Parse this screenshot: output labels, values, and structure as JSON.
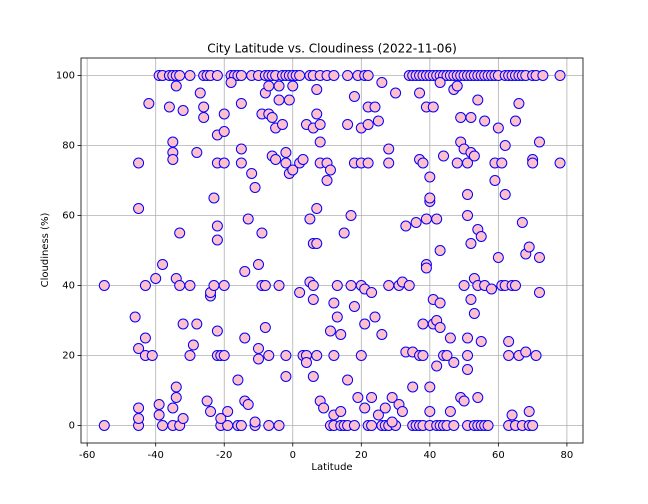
{
  "chart_data": {
    "type": "scatter",
    "title": "City Latitude vs. Cloudiness (2022-11-06)",
    "xlabel": "Latitude",
    "ylabel": "Cloudiness (%)",
    "xlim": [
      -61.8,
      84.7
    ],
    "ylim": [
      -5,
      105
    ],
    "xticks": [
      -60,
      -40,
      -20,
      0,
      20,
      40,
      60,
      80
    ],
    "yticks": [
      0,
      20,
      40,
      60,
      80,
      100
    ],
    "grid": true,
    "color": "#ffc0cb",
    "edgecolor": "#0000ff",
    "x": [
      -39,
      -38,
      -36,
      -35,
      -34,
      -33,
      -30,
      -26,
      -25,
      -24,
      -22,
      -18,
      -17,
      -16,
      -15,
      -12,
      -10,
      -8,
      -7,
      -6,
      -5,
      -3,
      -2,
      -1,
      0,
      1,
      2,
      5,
      6,
      8,
      10,
      12,
      16,
      19,
      21,
      22,
      34,
      35,
      36,
      37,
      38,
      39,
      40,
      41,
      42,
      43,
      44,
      45,
      46,
      47,
      48,
      49,
      50,
      51,
      52,
      53,
      54,
      55,
      56,
      57,
      58,
      59,
      60,
      62,
      63,
      64,
      65,
      66,
      67,
      68,
      70,
      71,
      73,
      78,
      -55,
      -45,
      -38,
      -35,
      -33,
      -21,
      -19,
      -16,
      -15,
      -11,
      -7,
      -4,
      11,
      12,
      14,
      15,
      16,
      18,
      22,
      23,
      26,
      27,
      28,
      30,
      35,
      36,
      37,
      38,
      40,
      42,
      43,
      44,
      45,
      47,
      51,
      53,
      54,
      55,
      56,
      57,
      63,
      65,
      67,
      69,
      70,
      -55,
      -46,
      -45,
      -45,
      -45,
      -45,
      -45,
      -42,
      -43,
      -43,
      -43,
      -41,
      -40,
      -39,
      -39,
      -38,
      -36,
      -35,
      -35,
      -35,
      -35,
      -34,
      -34,
      -34,
      -34,
      -33,
      -33,
      -32,
      -32,
      -32,
      -30,
      -30,
      -29,
      -28,
      -28,
      -27,
      -26,
      -26,
      -25,
      -24,
      -24,
      -24,
      -23,
      -23,
      -22,
      -22,
      -22,
      -22,
      -22,
      -22,
      -21,
      -21,
      -20,
      -20,
      -20,
      -20,
      -20,
      -19,
      -18,
      -16,
      -15,
      -15,
      -15,
      -14,
      -14,
      -14,
      -13,
      -13,
      -12,
      -11,
      -11,
      -10,
      -10,
      -10,
      -9,
      -9,
      -9,
      -8,
      -8,
      -8,
      -7,
      -7,
      -7,
      -6,
      -6,
      -5,
      -5,
      -4,
      -4,
      -4,
      -3,
      -2,
      -2,
      -2,
      -2,
      -1,
      -1,
      0,
      0,
      2,
      2,
      3,
      3,
      4,
      4,
      4,
      5,
      5,
      6,
      6,
      6,
      6,
      6,
      7,
      7,
      7,
      7,
      7,
      8,
      8,
      8,
      8,
      9,
      10,
      10,
      11,
      11,
      12,
      12,
      12,
      13,
      13,
      14,
      14,
      15,
      16,
      16,
      17,
      17,
      18,
      18,
      18,
      19,
      20,
      20,
      20,
      20,
      21,
      21,
      21,
      22,
      22,
      22,
      23,
      23,
      24,
      24,
      25,
      25,
      26,
      26,
      27,
      28,
      28,
      28,
      29,
      29,
      30,
      31,
      31,
      32,
      32,
      33,
      33,
      34,
      35,
      35,
      36,
      37,
      37,
      37,
      38,
      38,
      38,
      39,
      39,
      39,
      39,
      40,
      40,
      40,
      40,
      40,
      41,
      41,
      41,
      42,
      42,
      42,
      43,
      43,
      43,
      43,
      44,
      44,
      45,
      46,
      46,
      47,
      47,
      48,
      48,
      49,
      49,
      49,
      50,
      50,
      50,
      51,
      51,
      51,
      51,
      51,
      51,
      52,
      52,
      52,
      52,
      53,
      53,
      53,
      54,
      54,
      54,
      54,
      55,
      55,
      56,
      56,
      58,
      59,
      59,
      60,
      60,
      61,
      61,
      62,
      62,
      62,
      63,
      63,
      64,
      64,
      65,
      65,
      66,
      66,
      67,
      68,
      68,
      69,
      69,
      70,
      70,
      71,
      72,
      72,
      72,
      78
    ],
    "values": [
      100,
      100,
      100,
      100,
      100,
      100,
      100,
      100,
      100,
      100,
      100,
      100,
      100,
      100,
      100,
      100,
      100,
      100,
      100,
      100,
      100,
      100,
      100,
      100,
      100,
      100,
      100,
      100,
      100,
      100,
      100,
      100,
      100,
      100,
      100,
      100,
      100,
      100,
      100,
      100,
      100,
      100,
      100,
      100,
      100,
      100,
      100,
      100,
      100,
      100,
      100,
      100,
      100,
      100,
      100,
      100,
      100,
      100,
      100,
      100,
      100,
      100,
      100,
      100,
      100,
      100,
      100,
      100,
      100,
      100,
      100,
      100,
      100,
      100,
      0,
      0,
      0,
      0,
      0,
      0,
      0,
      0,
      0,
      0,
      0,
      0,
      0,
      0,
      0,
      0,
      0,
      0,
      0,
      0,
      0,
      0,
      0,
      0,
      0,
      0,
      0,
      0,
      0,
      0,
      0,
      0,
      0,
      0,
      0,
      0,
      0,
      0,
      0,
      0,
      0,
      0,
      0,
      0,
      0,
      40,
      31,
      75,
      62,
      22,
      5,
      2,
      92,
      25,
      40,
      20,
      20,
      42,
      6,
      3,
      46,
      91,
      81,
      78,
      76,
      5,
      97,
      8,
      11,
      42,
      40,
      55,
      90,
      29,
      2,
      20,
      40,
      23,
      78,
      29,
      95,
      88,
      91,
      7,
      37,
      38,
      4,
      65,
      40,
      83,
      75,
      57,
      53,
      27,
      20,
      20,
      2,
      84,
      89,
      75,
      40,
      20,
      4,
      98,
      13,
      92,
      79,
      75,
      44,
      25,
      7,
      59,
      6,
      72,
      68,
      1,
      46,
      22,
      19,
      55,
      89,
      40,
      95,
      40,
      28,
      89,
      97,
      20,
      77,
      88,
      85,
      76,
      93,
      97,
      40,
      86,
      75,
      78,
      20,
      14,
      72,
      93,
      73,
      97,
      75,
      38,
      76,
      20,
      20,
      18,
      86,
      41,
      59,
      36,
      52,
      40,
      85,
      14,
      52,
      62,
      96,
      89,
      20,
      75,
      81,
      86,
      7,
      5,
      70,
      75,
      73,
      27,
      35,
      20,
      3,
      40,
      31,
      26,
      4,
      55,
      13,
      86,
      60,
      40,
      34,
      94,
      75,
      8,
      75,
      85,
      40,
      20,
      29,
      39,
      5,
      91,
      86,
      75,
      38,
      8,
      31,
      91,
      3,
      87,
      26,
      98,
      5,
      79,
      75,
      40,
      8,
      1,
      95,
      40,
      6,
      41,
      4,
      57,
      21,
      40,
      21,
      11,
      58,
      95,
      76,
      20,
      75,
      29,
      20,
      91,
      59,
      46,
      45,
      71,
      64,
      65,
      11,
      4,
      91,
      36,
      29,
      30,
      17,
      59,
      50,
      35,
      28,
      98,
      77,
      20,
      20,
      25,
      4,
      96,
      18,
      97,
      75,
      88,
      81,
      8,
      79,
      40,
      7,
      75,
      66,
      60,
      25,
      20,
      16,
      88,
      78,
      52,
      36,
      77,
      42,
      32,
      56,
      93,
      40,
      8,
      54,
      24,
      87,
      40,
      39,
      75,
      70,
      48,
      85,
      40,
      75,
      66,
      80,
      40,
      24,
      20,
      40,
      3,
      87,
      40,
      92,
      20,
      58,
      21,
      49,
      51,
      4,
      76,
      75,
      20,
      48,
      38,
      81,
      75
    ]
  }
}
